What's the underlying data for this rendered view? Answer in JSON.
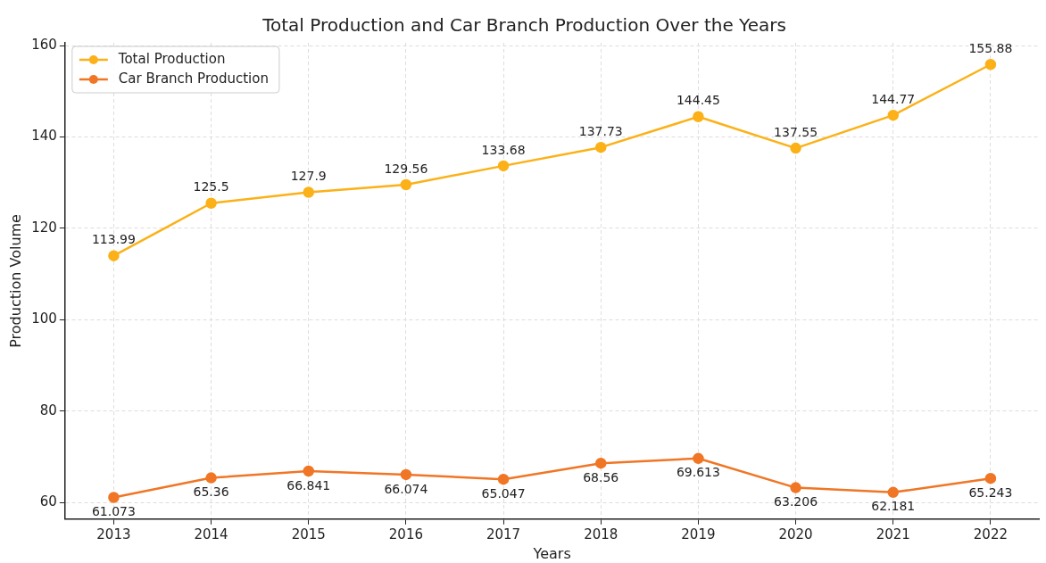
{
  "chart_data": {
    "type": "line",
    "title": "Total Production and Car Branch Production Over the Years",
    "xlabel": "Years",
    "ylabel": "Production Volume",
    "categories": [
      "2013",
      "2014",
      "2015",
      "2016",
      "2017",
      "2018",
      "2019",
      "2020",
      "2021",
      "2022"
    ],
    "series": [
      {
        "name": "Total Production",
        "color": "#fbb117",
        "values": [
          113.99,
          125.5,
          127.9,
          129.56,
          133.68,
          137.73,
          144.45,
          137.55,
          144.77,
          155.88
        ]
      },
      {
        "name": "Car Branch Production",
        "color": "#f07626",
        "values": [
          61.073,
          65.36,
          66.841,
          66.074,
          65.047,
          68.56,
          69.613,
          63.206,
          62.181,
          65.243
        ]
      }
    ],
    "ylim": [
      56.33,
      160.62
    ],
    "yticks": [
      60,
      80,
      100,
      120,
      140,
      160
    ],
    "grid": true,
    "legend": "top left",
    "marker": "circle",
    "line_style": "solid",
    "data_labels": true
  }
}
